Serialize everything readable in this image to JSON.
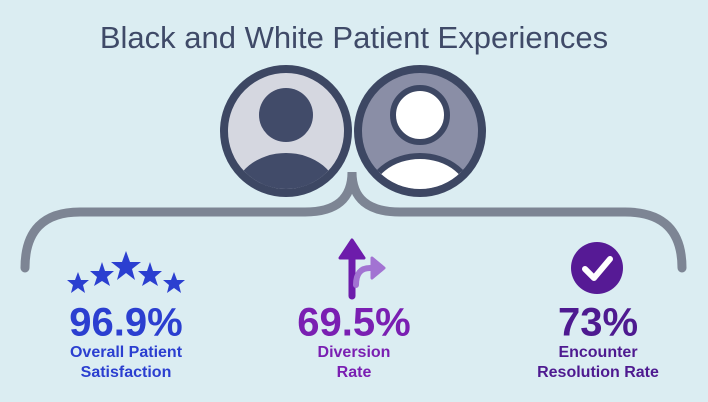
{
  "title": "Black and White Patient Experiences",
  "stats": [
    {
      "value": "96.9%",
      "label_lines": [
        "Overall Patient",
        "Satisfaction"
      ]
    },
    {
      "value": "69.5%",
      "label_lines": [
        "Diversion",
        "Rate"
      ]
    },
    {
      "value": "73%",
      "label_lines": [
        "Encounter",
        "Resolution Rate"
      ]
    }
  ]
}
